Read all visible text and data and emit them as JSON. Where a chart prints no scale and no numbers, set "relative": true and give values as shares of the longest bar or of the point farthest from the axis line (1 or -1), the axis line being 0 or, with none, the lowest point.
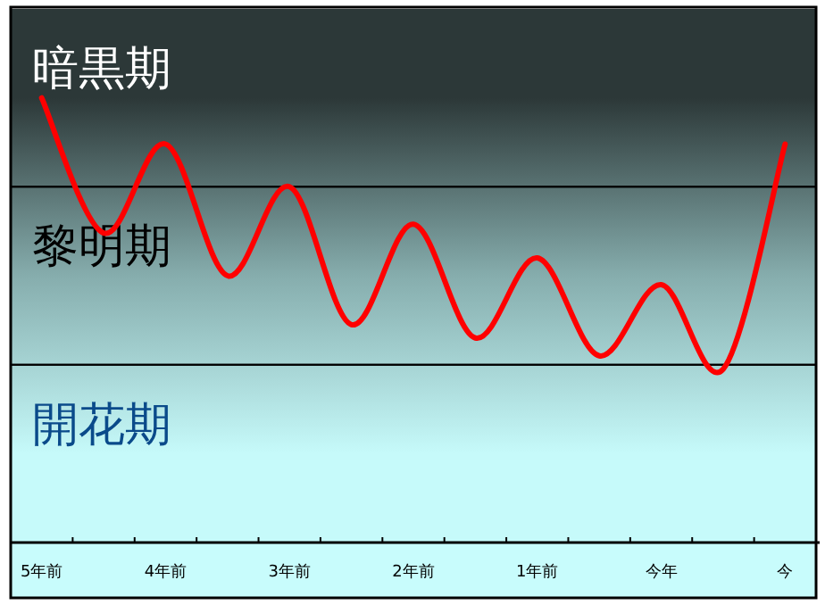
{
  "chart_data": {
    "type": "line",
    "relative": true,
    "categories": [
      "5年前",
      null,
      "4年前",
      null,
      "3年前",
      null,
      "2年前",
      null,
      "1年前",
      null,
      "今年",
      null,
      "今"
    ],
    "series": [
      {
        "color": "#ff0000",
        "values": [
          1,
          0.696,
          0.896,
          0.6,
          0.8,
          0.49,
          0.716,
          0.46,
          0.64,
          0.42,
          0.58,
          0.39,
          0.896
        ]
      }
    ],
    "bands": [
      {
        "axis": "y",
        "from": 0.8,
        "to": 1.2,
        "label": "暗黒期",
        "color": "#2c3838"
      },
      {
        "axis": "y",
        "from": 0.4,
        "to": 0.8,
        "label": "黎明期",
        "color": "#86adad"
      },
      {
        "axis": "y",
        "from": 0,
        "to": 0.4,
        "label": "開花期",
        "color": "#c6fafa"
      }
    ],
    "marker": "none",
    "line_style": "solid"
  }
}
